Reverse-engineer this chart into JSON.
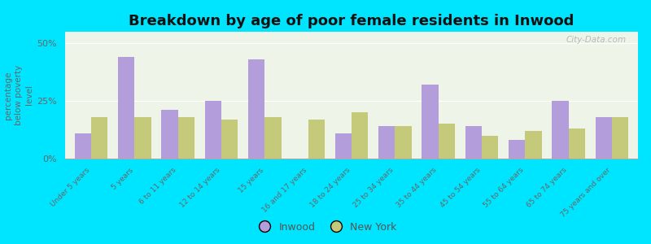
{
  "title": "Breakdown by age of poor female residents in Inwood",
  "ylabel": "percentage\nbelow poverty\nlevel",
  "categories": [
    "Under 5 years",
    "5 years",
    "6 to 11 years",
    "12 to 14 years",
    "15 years",
    "16 and 17 years",
    "18 to 24 years",
    "25 to 34 years",
    "35 to 44 years",
    "45 to 54 years",
    "55 to 64 years",
    "65 to 74 years",
    "75 years and over"
  ],
  "inwood_values": [
    11,
    44,
    21,
    25,
    43,
    0,
    11,
    14,
    32,
    14,
    8,
    25,
    18
  ],
  "ny_values": [
    18,
    18,
    18,
    17,
    18,
    17,
    20,
    14,
    15,
    10,
    12,
    13,
    18
  ],
  "inwood_color": "#b39ddb",
  "ny_color": "#c5c97a",
  "background_color": "#00e5ff",
  "plot_bg_color": "#eef5e8",
  "ylim": [
    0,
    55
  ],
  "yticks": [
    0,
    25,
    50
  ],
  "ytick_labels": [
    "0%",
    "25%",
    "50%"
  ],
  "title_fontsize": 13,
  "label_fontsize": 8,
  "bar_width": 0.38,
  "watermark": "City-Data.com"
}
